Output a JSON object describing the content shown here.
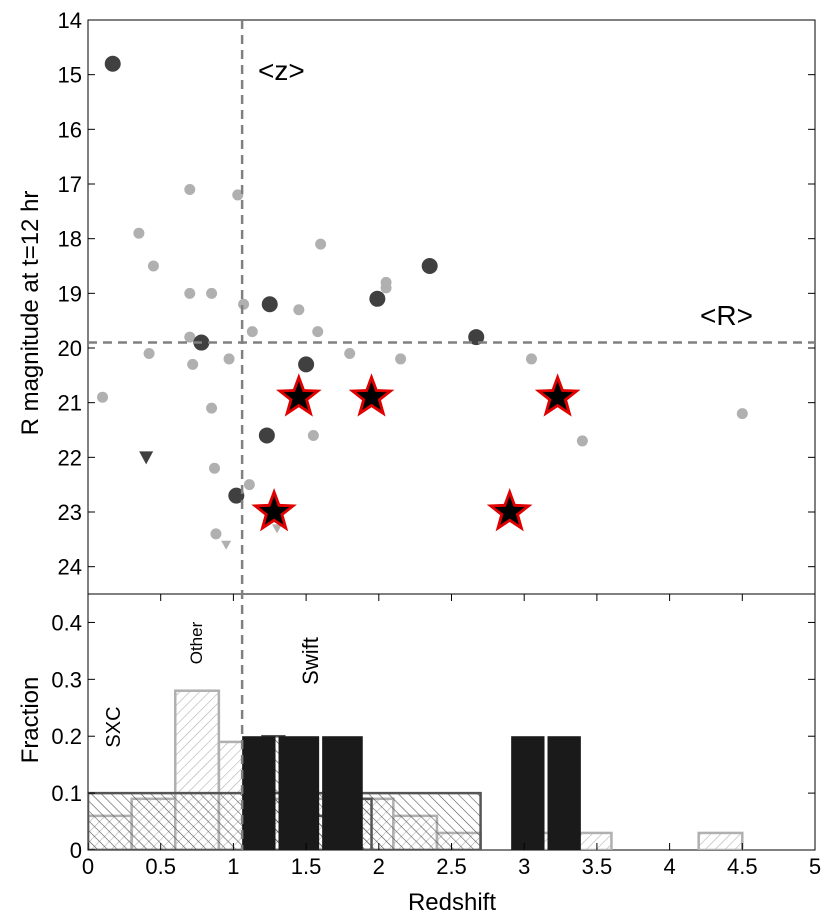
{
  "chart_data": [
    {
      "type": "scatter",
      "xlim": [
        0,
        5
      ],
      "ylim": [
        14,
        24.5
      ],
      "y_inverted": true,
      "ylabel": "R magnitude at t=12 hr",
      "yticks": [
        14,
        15,
        16,
        17,
        18,
        19,
        20,
        21,
        22,
        23,
        24
      ],
      "vline_label": "<z>",
      "hline_label": "<R>",
      "mean_z": 1.06,
      "mean_R": 19.9,
      "colors": {
        "light": "#b0b0b0",
        "dark": "#404040",
        "star_fill": "#000000",
        "star_edge": "#e00000",
        "mean_line": "#808080"
      },
      "series": [
        {
          "marker": "circle-light",
          "points": [
            [
              0.1,
              20.9
            ],
            [
              0.35,
              17.9
            ],
            [
              0.42,
              20.1
            ],
            [
              0.45,
              18.5
            ],
            [
              0.7,
              17.1
            ],
            [
              0.7,
              19.0
            ],
            [
              0.7,
              19.8
            ],
            [
              0.72,
              20.3
            ],
            [
              0.85,
              19.0
            ],
            [
              0.85,
              21.1
            ],
            [
              0.87,
              22.2
            ],
            [
              0.88,
              23.4
            ],
            [
              0.97,
              20.2
            ],
            [
              1.03,
              17.2
            ],
            [
              1.07,
              19.2
            ],
            [
              1.11,
              22.5
            ],
            [
              1.13,
              19.7
            ],
            [
              1.45,
              19.3
            ],
            [
              1.55,
              21.6
            ],
            [
              1.58,
              19.7
            ],
            [
              1.6,
              18.1
            ],
            [
              1.8,
              20.1
            ],
            [
              2.05,
              18.8
            ],
            [
              2.05,
              18.9
            ],
            [
              2.15,
              20.2
            ],
            [
              3.05,
              20.2
            ],
            [
              3.4,
              21.7
            ],
            [
              4.5,
              21.2
            ]
          ]
        },
        {
          "marker": "circle-dark",
          "points": [
            [
              0.17,
              14.8
            ],
            [
              0.78,
              19.9
            ],
            [
              1.02,
              22.7
            ],
            [
              1.23,
              21.6
            ],
            [
              1.25,
              19.2
            ],
            [
              1.5,
              20.3
            ],
            [
              1.99,
              19.1
            ],
            [
              2.35,
              18.5
            ],
            [
              2.67,
              19.8
            ]
          ]
        },
        {
          "marker": "triangle-dark",
          "points": [
            [
              0.4,
              22.0
            ]
          ]
        },
        {
          "marker": "triangle-light",
          "points": [
            [
              0.95,
              23.6
            ],
            [
              1.3,
              23.3
            ]
          ]
        },
        {
          "marker": "star",
          "points": [
            [
              1.28,
              23.0
            ],
            [
              1.45,
              20.9
            ],
            [
              1.95,
              20.9
            ],
            [
              2.9,
              23.0
            ],
            [
              3.23,
              20.9
            ]
          ]
        }
      ]
    },
    {
      "type": "bar",
      "xlabel": "Redshift",
      "ylabel": "Fraction",
      "xlim": [
        0,
        5
      ],
      "ylim": [
        0,
        0.45
      ],
      "xticks": [
        "0",
        "0.5",
        "1",
        "1.5",
        "2",
        "2.5",
        "3",
        "3.5",
        "4",
        "4.5",
        "5"
      ],
      "yticks": [
        "0",
        "0.1",
        "0.2",
        "0.3",
        "0.4"
      ],
      "labels": {
        "sxc": "SXC",
        "other": "Other",
        "swift": "Swift"
      },
      "series": [
        {
          "name": "Other",
          "style": "hatch-light",
          "bins": [
            [
              0,
              0.3,
              0.06
            ],
            [
              0.3,
              0.6,
              0.09
            ],
            [
              0.6,
              0.9,
              0.28
            ],
            [
              0.9,
              1.2,
              0.19
            ],
            [
              1.2,
              1.5,
              0.09
            ],
            [
              1.5,
              2.1,
              0.09
            ],
            [
              2.1,
              2.4,
              0.06
            ],
            [
              2.4,
              2.7,
              0.03
            ],
            [
              3.0,
              3.6,
              0.03
            ],
            [
              4.2,
              4.5,
              0.03
            ]
          ]
        },
        {
          "name": "Swift",
          "style": "hatch-dark",
          "bins": [
            [
              0,
              2.7,
              0.1
            ],
            [
              1.2,
              1.35,
              0.2
            ],
            [
              1.35,
              1.65,
              0.06
            ],
            [
              1.65,
              1.95,
              0.09
            ]
          ]
        },
        {
          "name": "SXC",
          "style": "solid-black",
          "bins": [
            [
              1.05,
              1.3,
              0.2
            ],
            [
              1.3,
              1.6,
              0.2
            ],
            [
              1.6,
              1.9,
              0.2
            ],
            [
              2.9,
              3.15,
              0.2
            ],
            [
              3.15,
              3.4,
              0.2
            ]
          ]
        }
      ]
    }
  ]
}
